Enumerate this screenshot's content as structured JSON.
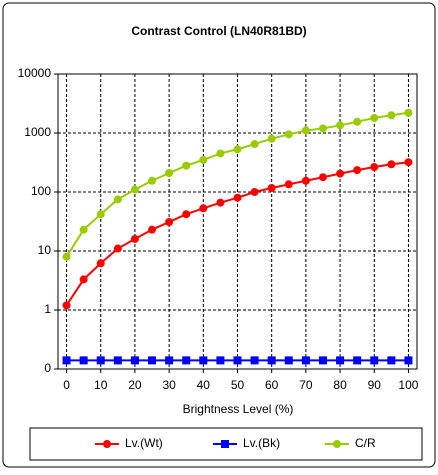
{
  "chart_data": {
    "type": "line",
    "title": "Contrast Control (LN40R81BD)",
    "xlabel": "Brightness Level (%)",
    "x": [
      0,
      5,
      10,
      15,
      20,
      25,
      30,
      35,
      40,
      45,
      50,
      55,
      60,
      65,
      70,
      75,
      80,
      85,
      90,
      95,
      100
    ],
    "xlim": [
      -2.5,
      102.5
    ],
    "xticks": [
      0,
      10,
      20,
      30,
      40,
      50,
      60,
      70,
      80,
      90,
      100
    ],
    "ylim": [
      0.1,
      10000
    ],
    "yticks": [
      {
        "value": 0.1,
        "label": "0"
      },
      1,
      10,
      100,
      1000,
      10000
    ],
    "log_y": true,
    "grid": true,
    "legend": "bottom",
    "series": [
      {
        "name": "Lv.(Wt)",
        "color": "#ff0000",
        "marker": "circle",
        "values": [
          1.2,
          3.3,
          6.2,
          11,
          16,
          23,
          31,
          42,
          53,
          66,
          80,
          100,
          117,
          135,
          155,
          178,
          205,
          235,
          265,
          295,
          320
        ]
      },
      {
        "name": "Lv.(Bk)",
        "color": "#0000ff",
        "marker": "square",
        "values": [
          0.14,
          0.14,
          0.14,
          0.14,
          0.14,
          0.14,
          0.14,
          0.14,
          0.14,
          0.14,
          0.14,
          0.14,
          0.14,
          0.14,
          0.14,
          0.14,
          0.14,
          0.14,
          0.14,
          0.14,
          0.14
        ]
      },
      {
        "name": "C/R",
        "color": "#99cc00",
        "marker": "circle",
        "values": [
          8,
          23,
          42,
          75,
          110,
          155,
          210,
          280,
          350,
          450,
          530,
          650,
          800,
          950,
          1100,
          1200,
          1350,
          1550,
          1800,
          2000,
          2200
        ]
      }
    ]
  }
}
